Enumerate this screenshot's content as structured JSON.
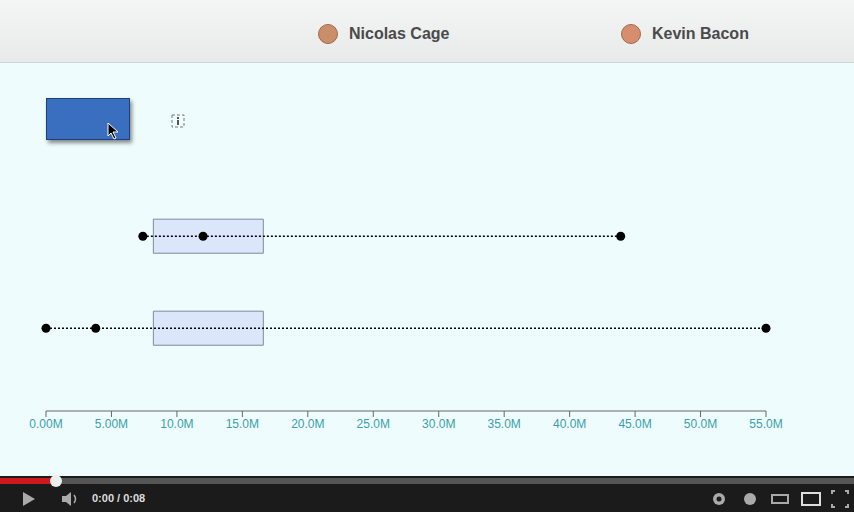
{
  "header": {
    "names": [
      "Nicolas Cage",
      "Kevin Bacon"
    ]
  },
  "chart_data": {
    "type": "boxplot",
    "xlim": [
      0,
      55
    ],
    "xticks": [
      {
        "value": 0,
        "label": "0.00M"
      },
      {
        "value": 5,
        "label": "5.00M"
      },
      {
        "value": 10,
        "label": "10.0M"
      },
      {
        "value": 15,
        "label": "15.0M"
      },
      {
        "value": 20,
        "label": "20.0M"
      },
      {
        "value": 25,
        "label": "25.0M"
      },
      {
        "value": 30,
        "label": "30.0M"
      },
      {
        "value": 35,
        "label": "35.0M"
      },
      {
        "value": 40,
        "label": "40.0M"
      },
      {
        "value": 45,
        "label": "45.0M"
      },
      {
        "value": 50,
        "label": "50.0M"
      },
      {
        "value": 55,
        "label": "55.0M"
      }
    ],
    "grid": false,
    "color": "#dce6fb",
    "series": [
      {
        "q1": 8.2,
        "q3": 16.6,
        "points": [
          7.4,
          12.0,
          43.9
        ]
      },
      {
        "q1": 8.2,
        "q3": 16.6,
        "points": [
          0,
          3.8,
          55
        ]
      }
    ]
  },
  "player": {
    "time": "0:00 / 0:08"
  }
}
